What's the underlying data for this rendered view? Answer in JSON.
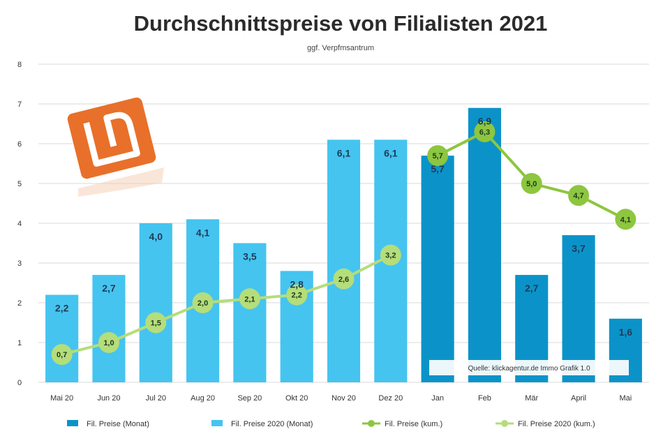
{
  "chart_data": {
    "type": "bar",
    "title": "Durchschnittspreise von Filialisten 2021",
    "subtitle": "ggf. Verpfmsantrum",
    "categories": [
      "Mai 20",
      "Jun 20",
      "Jul 20",
      "Aug 20",
      "Sep 20",
      "Okt 20",
      "Nov 20",
      "Dez 20",
      "Jan",
      "Feb",
      "Mär",
      "April",
      "Mai"
    ],
    "ylim": [
      0,
      8
    ],
    "yticks": [
      "0",
      "1",
      "2",
      "3",
      "4",
      "5",
      "6",
      "7",
      "8"
    ],
    "grid": true,
    "legend_position": "bottom",
    "series": [
      {
        "name": "Fil. Preise (Monat)",
        "kind": "bar",
        "color": "#0b93c9",
        "values": [
          null,
          null,
          null,
          null,
          null,
          null,
          null,
          null,
          5.7,
          6.9,
          2.7,
          3.7,
          1.6
        ],
        "labels": [
          "",
          "",
          "",
          "",
          "",
          "",
          "",
          "",
          "5,7",
          "6,9",
          "2,7",
          "3,7",
          "1,6"
        ]
      },
      {
        "name": "Fil. Preise 2020 (Monat)",
        "kind": "bar",
        "color": "#45c4f0",
        "values": [
          2.2,
          2.7,
          4.0,
          4.1,
          3.5,
          2.8,
          6.1,
          6.1,
          null,
          null,
          null,
          null,
          null
        ],
        "labels": [
          "2,2",
          "2,7",
          "4,0",
          "4,1",
          "3,5",
          "2,8",
          "6,1",
          "6,1",
          "",
          "",
          "",
          "",
          ""
        ]
      },
      {
        "name": "Fil. Preise (kum.)",
        "kind": "line",
        "color": "#8dc63f",
        "values": [
          null,
          null,
          null,
          null,
          null,
          null,
          null,
          null,
          5.7,
          6.3,
          5.0,
          4.7,
          4.1
        ],
        "labels": [
          "",
          "",
          "",
          "",
          "",
          "",
          "",
          "",
          "5,7",
          "6,3",
          "5,0",
          "4,7",
          "4,1"
        ]
      },
      {
        "name": "Fil. Preise 2020 (kum.)",
        "kind": "line",
        "color": "#b5dd7a",
        "values": [
          0.7,
          1.0,
          1.5,
          2.0,
          2.1,
          2.2,
          2.6,
          3.2,
          null,
          null,
          null,
          null,
          null
        ],
        "labels": [
          "0,7",
          "1,0",
          "1,5",
          "2,0",
          "2,1",
          "2,2",
          "2,6",
          "3,2",
          "",
          "",
          "",
          "",
          ""
        ]
      }
    ],
    "annotation": "Quelle: klickagentur.de Immo Grafik 1.0"
  },
  "colors": {
    "grid": "#d9d9d9",
    "axis_text": "#333333",
    "logo": "#e8702a"
  },
  "logo_icon": "ld-logo-icon"
}
